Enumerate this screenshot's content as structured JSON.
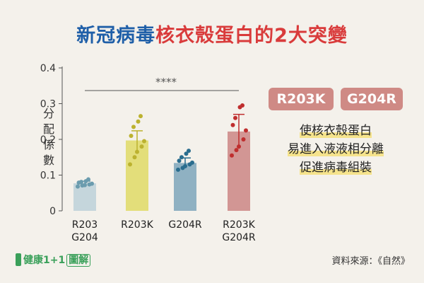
{
  "title_blue": "新冠病毒",
  "title_red": "核衣殼蛋白的2大突變",
  "colors": {
    "title_blue": "#1f5fa8",
    "title_red": "#d93b3b",
    "tag_bg": "#cf8a85",
    "bar_colors": [
      "#c5d6dc",
      "#e3de7a",
      "#8fb1c2",
      "#d29694"
    ],
    "dot_colors": [
      "#6b9cae",
      "#bcb22f",
      "#2a6d8e",
      "#bf2e2e"
    ]
  },
  "tags": [
    "R203K",
    "G204R"
  ],
  "description_lines": [
    "使核衣殼蛋白",
    "易進入液液相分離",
    "促進病毒組裝"
  ],
  "source": "資料來源：《自然》",
  "logo": {
    "text1": "健康",
    "text2": "1+1",
    "text3": "圖解"
  },
  "chart_data": {
    "type": "bar",
    "ylabel": "分配係數",
    "ylim": [
      0,
      0.4
    ],
    "yticks": [
      "0",
      "0.1",
      "0.2",
      "0.3",
      "0.4"
    ],
    "yticks_values": [
      0,
      0.1,
      0.2,
      0.3,
      0.4
    ],
    "categories": [
      [
        "R203",
        "G204"
      ],
      [
        "R203K"
      ],
      [
        "G204R"
      ],
      [
        "R203K",
        "G204R"
      ]
    ],
    "values": [
      0.077,
      0.197,
      0.134,
      0.222
    ],
    "errors": [
      0.006,
      0.027,
      0.014,
      0.048
    ],
    "points": [
      [
        0.068,
        0.071,
        0.072,
        0.074,
        0.076,
        0.079,
        0.081,
        0.083,
        0.088
      ],
      [
        0.13,
        0.15,
        0.165,
        0.18,
        0.195,
        0.21,
        0.235,
        0.25,
        0.265
      ],
      [
        0.115,
        0.12,
        0.125,
        0.13,
        0.135,
        0.14,
        0.15,
        0.16,
        0.168
      ],
      [
        0.155,
        0.17,
        0.18,
        0.2,
        0.225,
        0.24,
        0.26,
        0.29,
        0.295
      ]
    ],
    "significance": "****",
    "grid": false
  }
}
